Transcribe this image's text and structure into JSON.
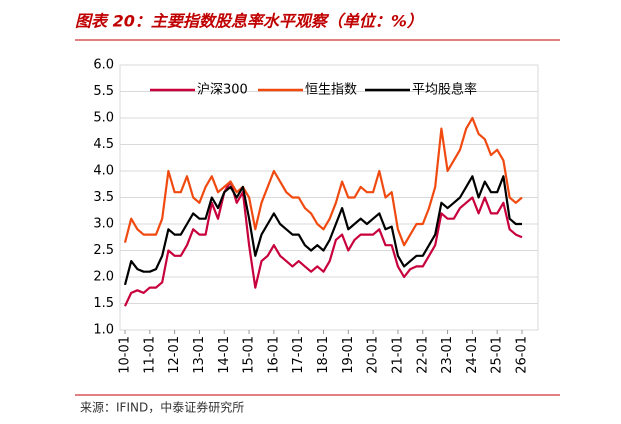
{
  "chart_data": {
    "type": "line",
    "title": "图表 20：主要指数股息率水平观察（单位：%）",
    "source": "来源：IFIND，中泰证券研究所",
    "categories": [
      "10-01",
      null,
      null,
      null,
      "11-01",
      null,
      null,
      null,
      "12-01",
      null,
      null,
      null,
      "13-01",
      null,
      null,
      null,
      "14-01",
      null,
      null,
      null,
      "15-01",
      null,
      null,
      null,
      "16-01",
      null,
      null,
      null,
      "17-01",
      null,
      null,
      null,
      "18-01",
      null,
      null,
      null,
      "19-01",
      null,
      null,
      null,
      "20-01",
      null,
      null,
      null,
      "21-01",
      null,
      null,
      null,
      "22-01",
      null,
      null,
      null,
      "23-01",
      null,
      null,
      null,
      "24-01",
      null,
      null,
      null,
      "25-01",
      null,
      null,
      null,
      "26-01"
    ],
    "series": [
      {
        "name": "沪深300",
        "color": "#c8003c",
        "values": [
          1.45,
          1.7,
          1.75,
          1.7,
          1.8,
          1.8,
          1.9,
          2.5,
          2.4,
          2.4,
          2.6,
          2.9,
          2.8,
          2.8,
          3.4,
          3.1,
          3.6,
          3.8,
          3.4,
          3.6,
          2.6,
          1.8,
          2.3,
          2.4,
          2.6,
          2.4,
          2.3,
          2.2,
          2.3,
          2.2,
          2.1,
          2.2,
          2.1,
          2.3,
          2.7,
          2.8,
          2.5,
          2.7,
          2.8,
          2.8,
          2.8,
          2.9,
          2.6,
          2.6,
          2.2,
          2.0,
          2.15,
          2.2,
          2.2,
          2.4,
          2.6,
          3.2,
          3.1,
          3.1,
          3.3,
          3.4,
          3.5,
          3.2,
          3.5,
          3.2,
          3.2,
          3.4,
          2.9,
          2.8,
          2.75
        ]
      },
      {
        "name": "恒生指数",
        "color": "#f04a10",
        "values": [
          2.65,
          3.1,
          2.9,
          2.8,
          2.8,
          2.8,
          3.1,
          4.0,
          3.6,
          3.6,
          3.9,
          3.5,
          3.4,
          3.7,
          3.9,
          3.6,
          3.7,
          3.8,
          3.6,
          3.7,
          3.5,
          2.9,
          3.4,
          3.7,
          4.0,
          3.8,
          3.6,
          3.5,
          3.5,
          3.3,
          3.2,
          3.0,
          2.9,
          3.1,
          3.4,
          3.8,
          3.5,
          3.5,
          3.7,
          3.6,
          3.6,
          4.0,
          3.5,
          3.6,
          2.9,
          2.6,
          2.8,
          3.0,
          3.0,
          3.3,
          3.7,
          4.8,
          4.0,
          4.2,
          4.4,
          4.8,
          5.0,
          4.7,
          4.6,
          4.3,
          4.4,
          4.2,
          3.5,
          3.4,
          3.5
        ]
      },
      {
        "name": "平均股息率",
        "color": "#000000",
        "values": [
          1.85,
          2.3,
          2.15,
          2.1,
          2.1,
          2.15,
          2.4,
          2.9,
          2.8,
          2.8,
          3.0,
          3.2,
          3.1,
          3.1,
          3.5,
          3.3,
          3.6,
          3.7,
          3.5,
          3.7,
          3.1,
          2.4,
          2.8,
          3.0,
          3.2,
          3.0,
          2.9,
          2.8,
          2.8,
          2.6,
          2.5,
          2.6,
          2.5,
          2.7,
          3.0,
          3.3,
          2.9,
          3.0,
          3.1,
          3.0,
          3.1,
          3.2,
          2.9,
          2.95,
          2.4,
          2.2,
          2.3,
          2.4,
          2.4,
          2.6,
          2.8,
          3.4,
          3.3,
          3.4,
          3.5,
          3.7,
          3.9,
          3.5,
          3.8,
          3.6,
          3.6,
          3.9,
          3.1,
          3.0,
          3.0
        ]
      }
    ],
    "ylim": [
      1.0,
      6.0
    ],
    "yticks": [
      {
        "value": 1,
        "label": "1.0"
      },
      1.5,
      {
        "value": 2,
        "label": "2.0"
      },
      2.5,
      {
        "value": 3,
        "label": "3.0"
      },
      3.5,
      {
        "value": 4,
        "label": "4.0"
      },
      4.5,
      {
        "value": 5,
        "label": "5.0"
      },
      5.5,
      {
        "value": 6,
        "label": "6.0"
      }
    ],
    "grid": true
  }
}
